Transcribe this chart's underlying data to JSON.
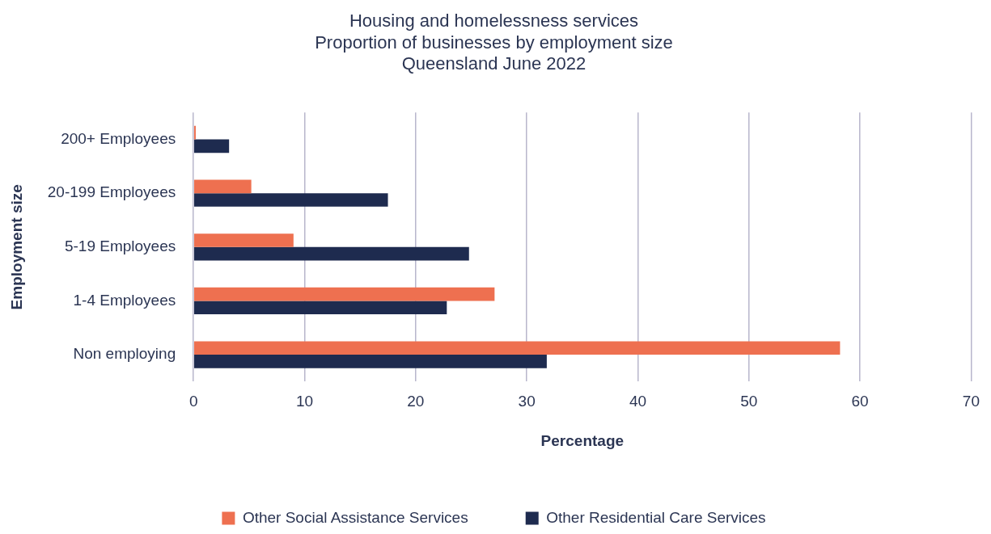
{
  "chart_data": {
    "type": "bar",
    "orientation": "horizontal",
    "title": [
      "Housing and homelessness services",
      "Proportion of businesses by employment size",
      "Queensland June 2022"
    ],
    "categories": [
      "200+ Employees",
      "20-199 Employees",
      "5-19 Employees",
      "1-4 Employees",
      "Non employing"
    ],
    "series": [
      {
        "name": "Other Social Assistance Services",
        "color": "#ee7050",
        "values": [
          0.2,
          5.2,
          9.0,
          27.1,
          58.2
        ]
      },
      {
        "name": "Other Residential Care Services",
        "color": "#1e2b4f",
        "values": [
          3.2,
          17.5,
          24.8,
          22.8,
          31.8
        ]
      }
    ],
    "xlabel": "Percentage",
    "ylabel": "Employment size",
    "xlim": [
      0,
      70
    ],
    "xticks": [
      0,
      10,
      20,
      30,
      40,
      50,
      60,
      70
    ],
    "grid": "x",
    "legend": "bottom"
  }
}
